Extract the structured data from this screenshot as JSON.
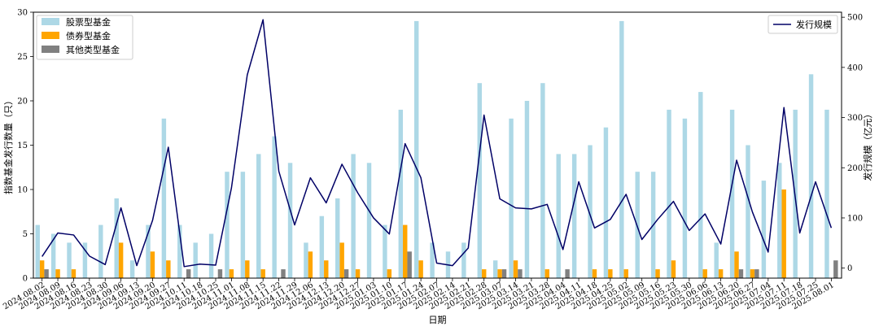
{
  "chart_data": {
    "type": "bar",
    "xlabel": "日期",
    "ylabel_left": "指数基金发行数量（只）",
    "ylabel_right": "发行规模（亿元）",
    "ylim_left": [
      0,
      30
    ],
    "yticks_left": [
      0,
      5,
      10,
      15,
      20,
      25,
      30
    ],
    "ylim_right": [
      -20,
      510
    ],
    "yticks_right": [
      0,
      100,
      200,
      300,
      400,
      500
    ],
    "categories": [
      "2024.08.02",
      "2024.08.09",
      "2024.08.16",
      "2024.08.23",
      "2024.08.30",
      "2024.09.06",
      "2024.09.13",
      "2024.09.20",
      "2024.09.27",
      "2024.10.11",
      "2024.10.18",
      "2024.10.25",
      "2024.11.01",
      "2024.11.08",
      "2024.11.15",
      "2024.11.22",
      "2024.11.29",
      "2024.12.06",
      "2024.12.13",
      "2024.12.20",
      "2024.12.27",
      "2025.01.03",
      "2025.01.10",
      "2025.01.17",
      "2025.01.24",
      "2025.02.07",
      "2025.02.14",
      "2025.02.21",
      "2025.02.28",
      "2025.03.07",
      "2025.03.14",
      "2025.03.21",
      "2025.03.28",
      "2025.04.04",
      "2025.04.11",
      "2025.04.18",
      "2025.04.25",
      "2025.05.02",
      "2025.05.09",
      "2025.05.16",
      "2025.05.23",
      "2025.05.30",
      "2025.06.06",
      "2025.06.13",
      "2025.06.20",
      "2025.06.27",
      "2025.07.04",
      "2025.07.11",
      "2025.07.18",
      "2025.07.25",
      "2025.08.01"
    ],
    "series": [
      {
        "name": "股票型基金",
        "kind": "bar",
        "color": "#add8e6",
        "values": [
          6,
          5,
          4,
          4,
          6,
          9,
          2,
          6,
          18,
          6,
          4,
          5,
          12,
          12,
          14,
          16,
          13,
          4,
          7,
          9,
          14,
          13,
          6,
          19,
          29,
          4,
          3,
          4,
          22,
          2,
          18,
          20,
          22,
          14,
          14,
          15,
          17,
          29,
          12,
          12,
          19,
          18,
          21,
          4,
          19,
          15,
          11,
          13,
          19,
          23,
          19
        ]
      },
      {
        "name": "债券型基金",
        "kind": "bar",
        "color": "#ffa500",
        "values": [
          2,
          1,
          1,
          0,
          0,
          4,
          0,
          3,
          2,
          0,
          0,
          0,
          1,
          2,
          1,
          0,
          0,
          3,
          2,
          4,
          1,
          0,
          1,
          6,
          2,
          0,
          0,
          0,
          1,
          1,
          2,
          0,
          1,
          0,
          0,
          1,
          1,
          1,
          0,
          1,
          2,
          0,
          1,
          1,
          3,
          1,
          0,
          10,
          0,
          0,
          0
        ]
      },
      {
        "name": "其他类型基金",
        "kind": "bar",
        "color": "#808080",
        "values": [
          1,
          0,
          0,
          0,
          0,
          0,
          0,
          0,
          0,
          1,
          0,
          1,
          0,
          0,
          0,
          1,
          0,
          0,
          0,
          1,
          0,
          0,
          0,
          3,
          0,
          0,
          0,
          0,
          0,
          1,
          1,
          0,
          0,
          1,
          0,
          0,
          0,
          0,
          0,
          0,
          0,
          0,
          0,
          0,
          1,
          1,
          0,
          0,
          0,
          0,
          2
        ]
      },
      {
        "name": "发行规模",
        "kind": "line",
        "color": "#000066",
        "values": [
          23,
          70,
          66,
          24,
          7,
          120,
          5,
          95,
          241,
          3,
          8,
          6,
          160,
          385,
          495,
          193,
          86,
          180,
          130,
          207,
          150,
          100,
          68,
          248,
          180,
          10,
          5,
          40,
          305,
          138,
          120,
          118,
          127,
          37,
          172,
          80,
          97,
          147,
          57,
          97,
          133,
          75,
          108,
          48,
          215,
          112,
          32,
          320,
          70,
          172,
          80
        ]
      }
    ],
    "legend_left": "top-left",
    "legend_right": "top-right",
    "grid": false
  }
}
